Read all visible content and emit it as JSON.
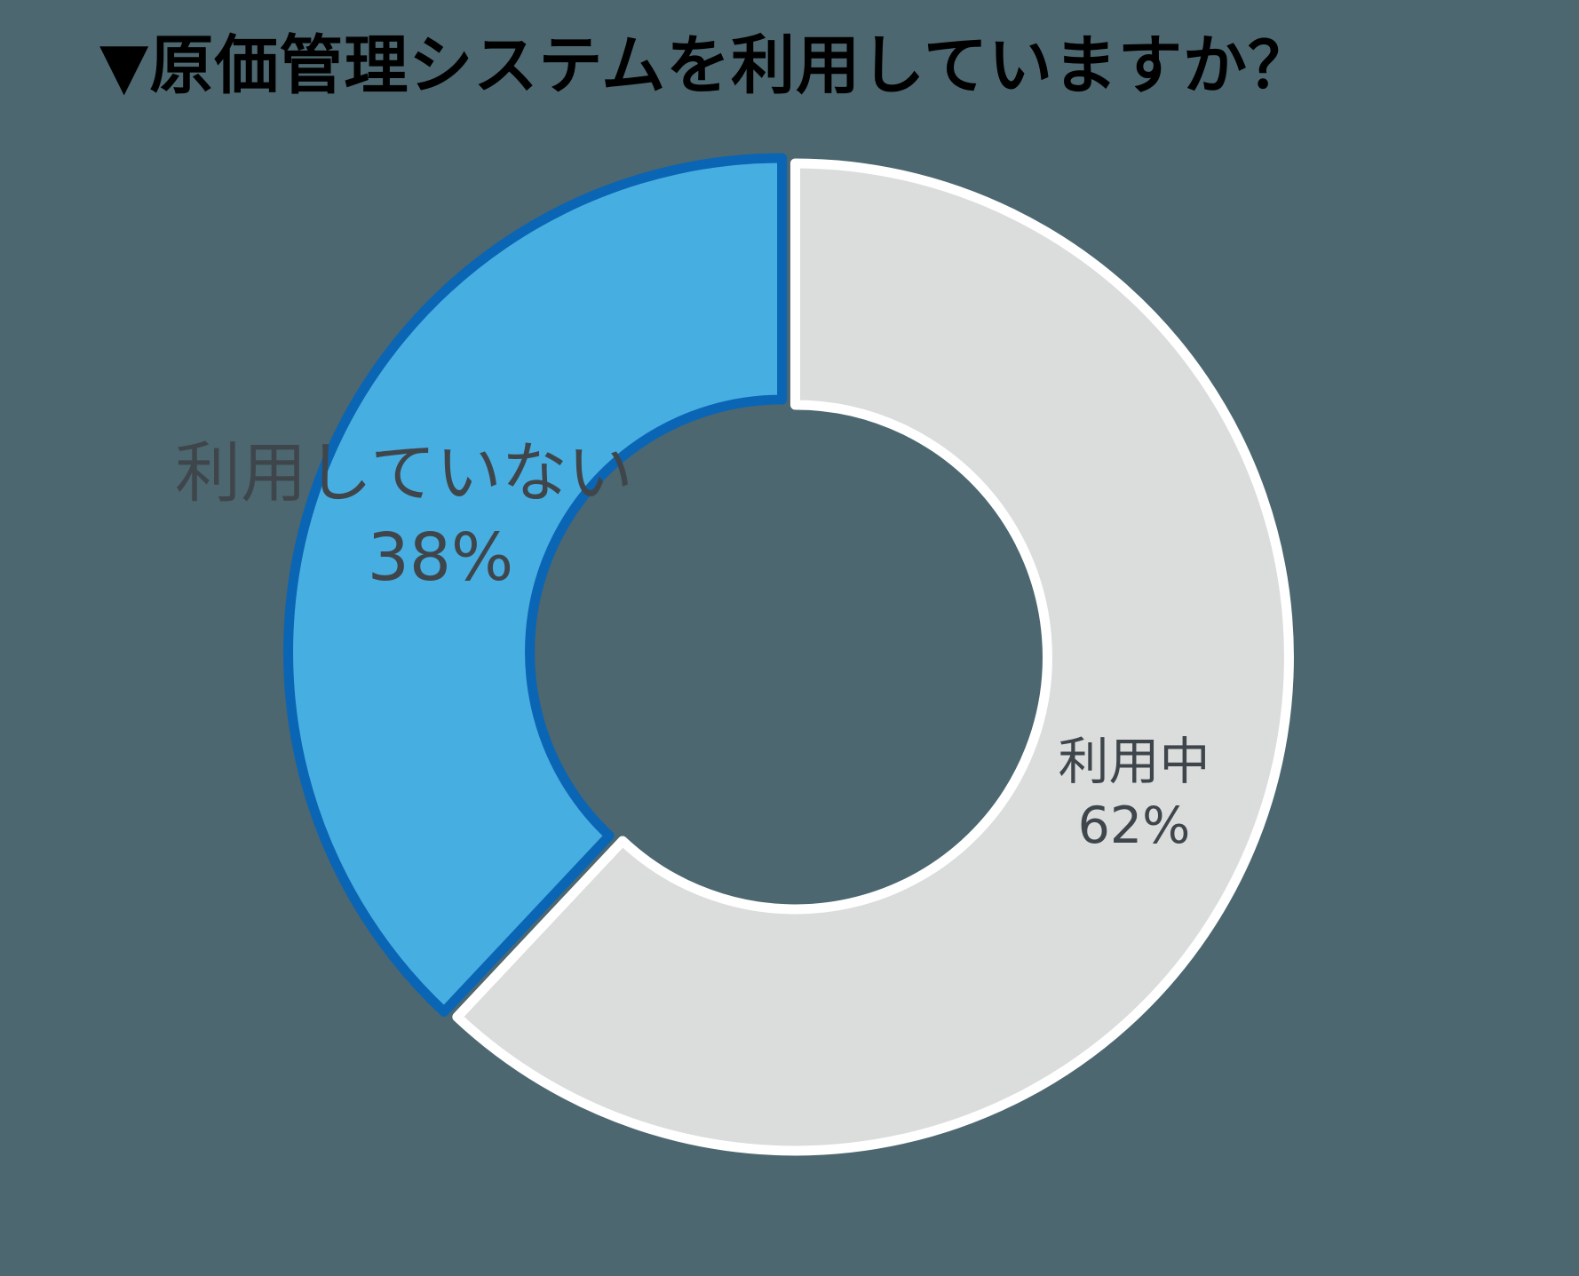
{
  "page": {
    "background_color": "#4C6770"
  },
  "header": {
    "title": "▼原価管理システムを利用していますか？",
    "title_color": "#000000"
  },
  "chart_data": {
    "type": "pie",
    "subtype": "donut",
    "title": "▼原価管理システムを利用していますか？",
    "start_angle_deg": 0,
    "direction": "clockwise",
    "inner_radius_ratio": 0.51,
    "explode": true,
    "legend": "none",
    "labels_color": "#3E464B",
    "segments": [
      {
        "id": "in-use",
        "label": "利用中",
        "value_pct": 62,
        "pct_label": "62%",
        "color": "#DBDCDC",
        "border_color": "#FFFFFF"
      },
      {
        "id": "not-using",
        "label": "利用していない",
        "value_pct": 38,
        "pct_label": "38%",
        "color": "#47AEE2",
        "border_color": "#0A65B4"
      }
    ]
  }
}
